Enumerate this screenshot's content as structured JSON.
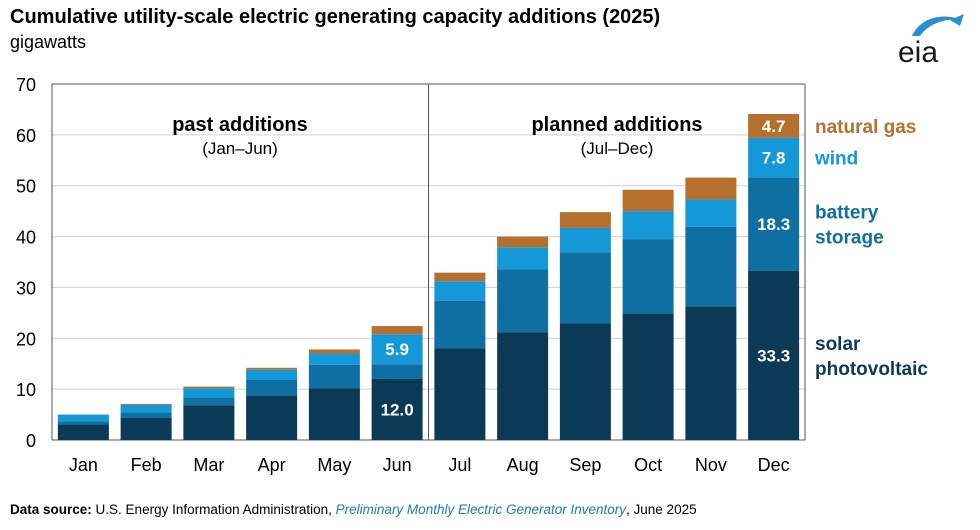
{
  "header": {
    "title": "Cumulative utility-scale electric generating capacity additions (2025)",
    "subtitle": "gigawatts",
    "logo_text": "eia"
  },
  "source": {
    "label": "Data source:",
    "org": "U.S. Energy Information Administration,",
    "publication": "Preliminary Monthly Electric Generator Inventory",
    "date": ", June 2025"
  },
  "colors": {
    "solar": "#0b3a56",
    "battery": "#0e6fa3",
    "wind": "#1498d8",
    "gas": "#b5702d",
    "grid": "#d0d0d0",
    "axis": "#555555",
    "logo_blue": "#2a8fcf"
  },
  "chart_data": {
    "type": "bar",
    "stacked": true,
    "categories": [
      "Jan",
      "Feb",
      "Mar",
      "Apr",
      "May",
      "Jun",
      "Jul",
      "Aug",
      "Sep",
      "Oct",
      "Nov",
      "Dec"
    ],
    "series": [
      {
        "name": "solar photovoltaic",
        "key": "solar",
        "values": [
          3.1,
          4.4,
          6.8,
          8.8,
          10.2,
          12.0,
          18.0,
          21.2,
          22.9,
          24.9,
          26.3,
          33.3
        ]
      },
      {
        "name": "battery storage",
        "key": "battery",
        "values": [
          0.6,
          1.0,
          1.6,
          3.0,
          4.6,
          2.9,
          9.4,
          12.4,
          14.0,
          14.6,
          15.6,
          18.3
        ]
      },
      {
        "name": "wind",
        "key": "wind",
        "values": [
          1.3,
          1.5,
          1.8,
          2.0,
          2.2,
          5.9,
          3.8,
          4.3,
          4.8,
          5.5,
          5.4,
          7.8
        ]
      },
      {
        "name": "natural gas",
        "key": "gas",
        "values": [
          0.0,
          0.2,
          0.3,
          0.4,
          0.8,
          1.6,
          1.7,
          2.1,
          3.1,
          4.2,
          4.3,
          4.7
        ]
      }
    ],
    "data_labels": [
      {
        "category": "Jun",
        "series": "solar",
        "text": "12.0"
      },
      {
        "category": "Jun",
        "series": "wind",
        "text": "5.9"
      },
      {
        "category": "Dec",
        "series": "solar",
        "text": "33.3"
      },
      {
        "category": "Dec",
        "series": "battery",
        "text": "18.3"
      },
      {
        "category": "Dec",
        "series": "wind",
        "text": "7.8"
      },
      {
        "category": "Dec",
        "series": "gas",
        "text": "4.7"
      }
    ],
    "ylim": [
      0,
      70
    ],
    "yticks": [
      0,
      10,
      20,
      30,
      40,
      50,
      60,
      70
    ],
    "legend_position": "right",
    "legend": [
      {
        "key": "gas",
        "lines": [
          "natural gas"
        ]
      },
      {
        "key": "wind",
        "lines": [
          "wind"
        ]
      },
      {
        "key": "battery",
        "lines": [
          "battery",
          "storage"
        ]
      },
      {
        "key": "solar",
        "lines": [
          "solar",
          "photovoltaic"
        ]
      }
    ],
    "annotations": {
      "past": {
        "title": "past additions",
        "range": "(Jan–Jun)"
      },
      "planned": {
        "title": "planned additions",
        "range": "(Jul–Dec)"
      }
    }
  }
}
